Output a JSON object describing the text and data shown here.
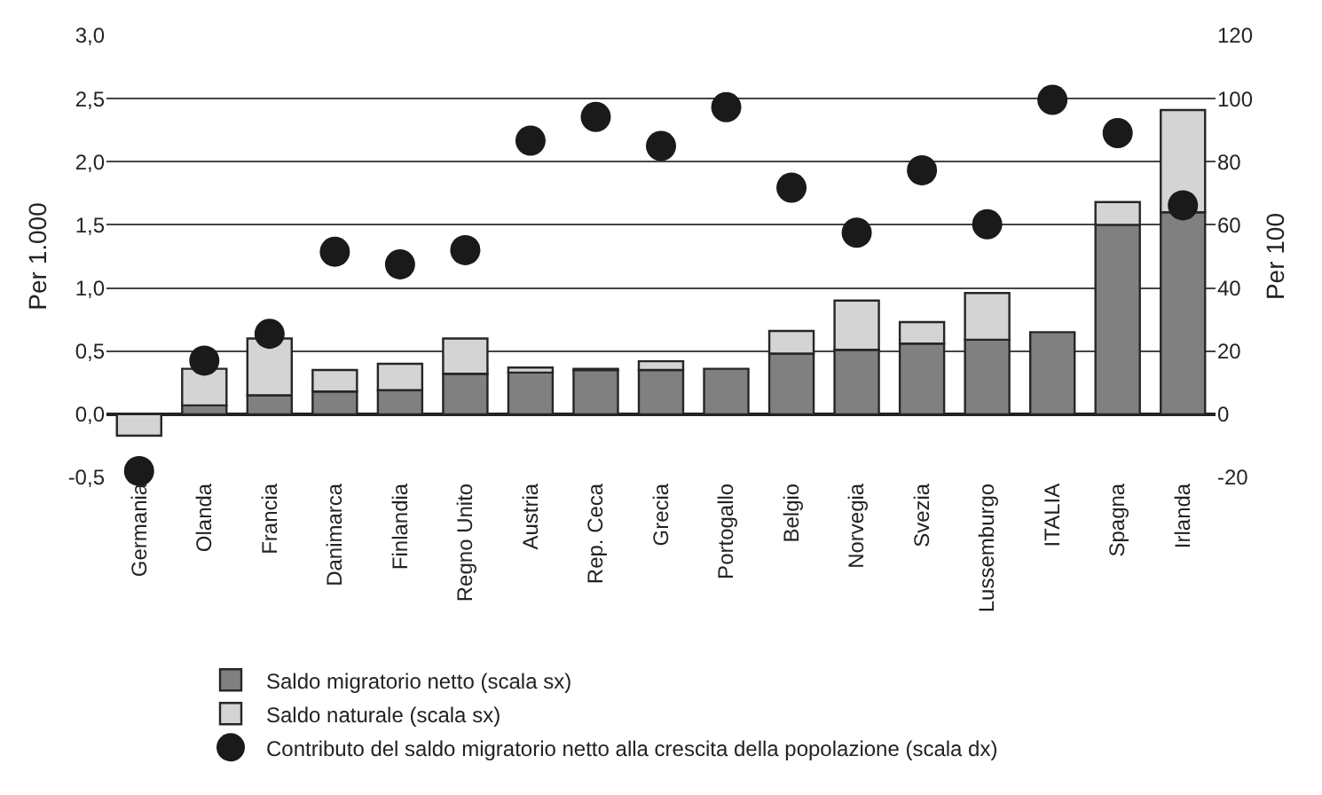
{
  "chart_data": {
    "type": "bar",
    "stacked": true,
    "ylabel": "Per 1.000",
    "y2label": "Per 100",
    "categories": [
      "Germania",
      "Olanda",
      "Francia",
      "Danimarca",
      "Finlandia",
      "Regno Unito",
      "Austria",
      "Rep. Ceca",
      "Grecia",
      "Portogallo",
      "Belgio",
      "Norvegia",
      "Svezia",
      "Lussemburgo",
      "ITALIA",
      "Spagna",
      "Irlanda"
    ],
    "series": [
      {
        "name": "Saldo migratorio netto (scala sx)",
        "color": "#808080",
        "values": [
          null,
          0.07,
          0.15,
          0.18,
          0.19,
          0.32,
          0.33,
          0.35,
          0.35,
          0.36,
          0.48,
          0.51,
          0.56,
          0.59,
          0.65,
          1.5,
          1.6
        ]
      },
      {
        "name": "Saldo naturale (scala sx)",
        "color": "#d4d4d4",
        "values": [
          -0.17,
          0.29,
          0.45,
          0.17,
          0.21,
          0.28,
          0.04,
          0.01,
          0.07,
          null,
          0.18,
          0.39,
          0.17,
          0.37,
          null,
          0.18,
          0.81
        ]
      },
      {
        "name": "Contributo del saldo migratorio netto alla crescita della popolazione (scala dx)",
        "type": "scatter",
        "axis": "y2",
        "marker": "circle",
        "color": "#1a1a1a",
        "values": [
          -18,
          17,
          25.5,
          51.5,
          47.5,
          52,
          86.7,
          94.2,
          85,
          97.3,
          71.8,
          57.5,
          77.3,
          60.2,
          99.6,
          89.1,
          66.2
        ]
      }
    ],
    "ylim": [
      -0.5,
      3.0
    ],
    "yticks": [
      {
        "value": -0.5,
        "label": "-0,5"
      },
      {
        "value": 0,
        "label": "0,0"
      },
      {
        "value": 0.5,
        "label": "0,5"
      },
      {
        "value": 1.0,
        "label": "1,0"
      },
      {
        "value": 1.5,
        "label": "1,5"
      },
      {
        "value": 2.0,
        "label": "2,0"
      },
      {
        "value": 2.5,
        "label": "2,5"
      },
      {
        "value": 3.0,
        "label": "3,0"
      }
    ],
    "y2lim": [
      -20,
      120
    ],
    "y2ticks": [
      -20,
      0,
      20,
      40,
      60,
      80,
      100,
      120
    ],
    "grid": "y",
    "legend": "bottom"
  }
}
